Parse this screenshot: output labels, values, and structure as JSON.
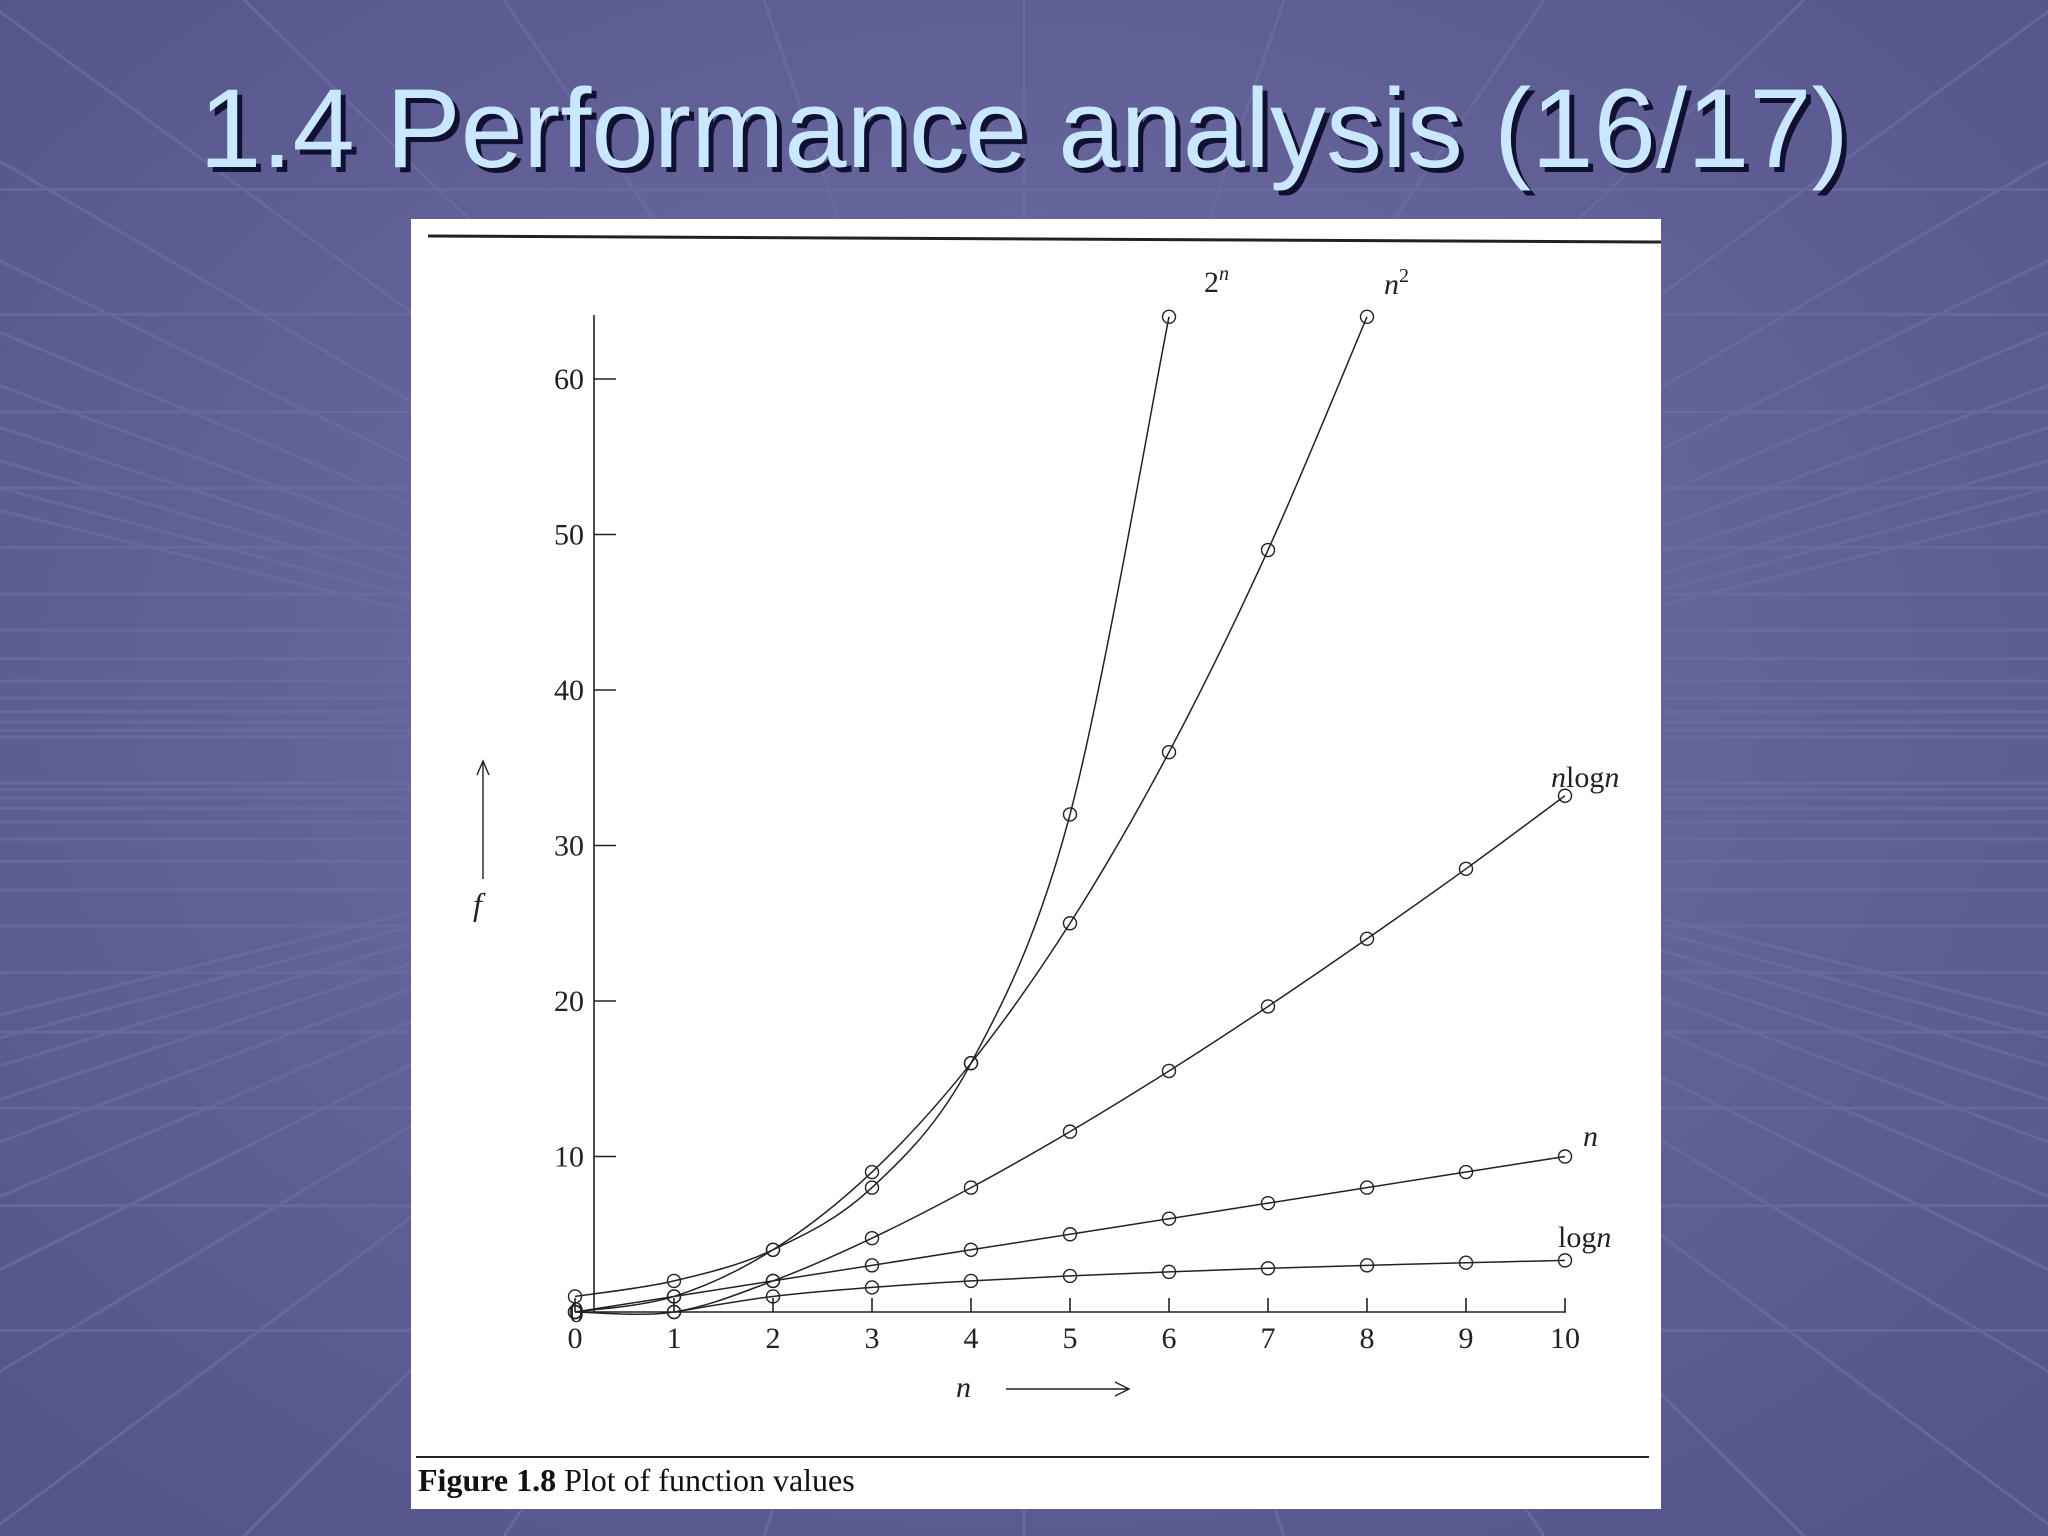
{
  "slide": {
    "title": "1.4 Performance analysis (16/17)"
  },
  "colors": {
    "background": "#5c5c93",
    "title_text": "#c9e8ff",
    "figure_background": "#ffffff",
    "ink": "#222222"
  },
  "figure": {
    "caption_label": "Figure 1.8",
    "caption_text": "Plot of function values"
  },
  "chart_data": {
    "type": "line",
    "xlabel": "n",
    "ylabel": "f",
    "xlim": [
      0,
      10
    ],
    "ylim": [
      0,
      64
    ],
    "x_ticks": [
      "0",
      "1",
      "2",
      "3",
      "4",
      "5",
      "6",
      "7",
      "8",
      "9",
      "10"
    ],
    "y_ticks": [
      "0",
      "10",
      "20",
      "30",
      "40",
      "50",
      "60"
    ],
    "grid": false,
    "legend": "curve-end labels",
    "series": [
      {
        "name": "2^n",
        "label_base": "2",
        "label_sup": "n",
        "x": [
          0,
          1,
          2,
          3,
          4,
          5,
          6
        ],
        "y": [
          1,
          2,
          4,
          8,
          16,
          32,
          64
        ]
      },
      {
        "name": "n^2",
        "label_base": "n",
        "label_sup": "2",
        "x": [
          0,
          1,
          2,
          3,
          4,
          5,
          6,
          7,
          8
        ],
        "y": [
          0,
          1,
          4,
          9,
          16,
          25,
          36,
          49,
          64
        ]
      },
      {
        "name": "nlogn",
        "label_base": "nlogn",
        "label_sup": "",
        "x": [
          0,
          1,
          2,
          3,
          4,
          5,
          6,
          7,
          8,
          9,
          10
        ],
        "y": [
          0,
          0,
          2,
          4.75,
          8,
          11.6,
          15.5,
          19.65,
          24,
          28.5,
          33.2
        ]
      },
      {
        "name": "n",
        "label_base": "n",
        "label_sup": "",
        "x": [
          0,
          1,
          2,
          3,
          4,
          5,
          6,
          7,
          8,
          9,
          10
        ],
        "y": [
          0,
          1,
          2,
          3,
          4,
          5,
          6,
          7,
          8,
          9,
          10
        ]
      },
      {
        "name": "logn",
        "label_base": "logn",
        "label_sup": "",
        "x": [
          1,
          2,
          3,
          4,
          5,
          6,
          7,
          8,
          9,
          10
        ],
        "y": [
          0,
          1,
          1.58,
          2,
          2.32,
          2.58,
          2.81,
          3,
          3.17,
          3.32
        ]
      }
    ]
  }
}
